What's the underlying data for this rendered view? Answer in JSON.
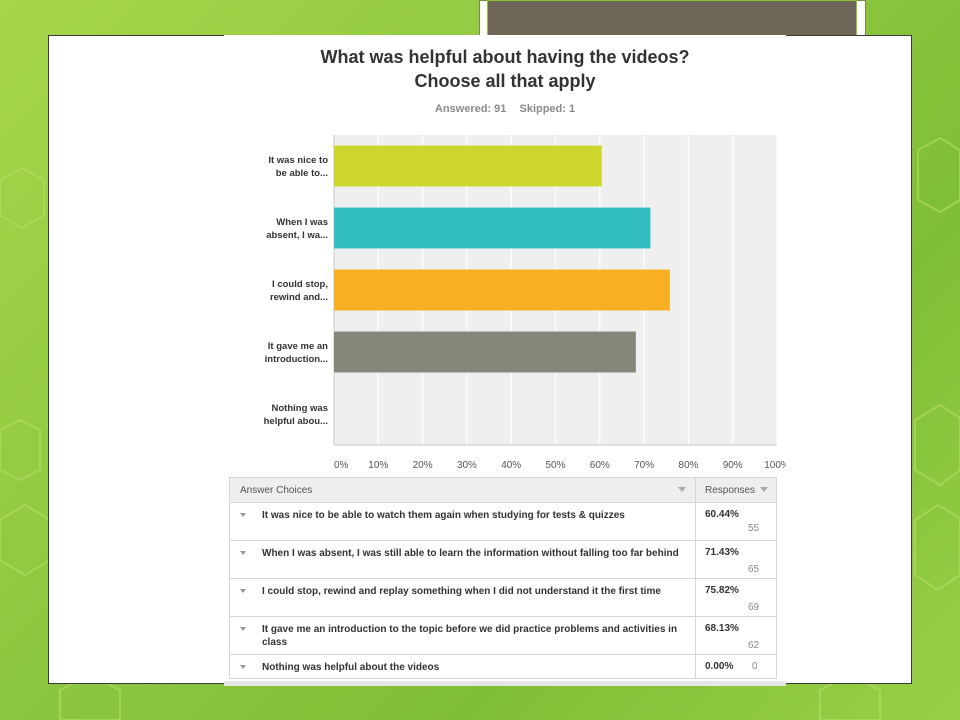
{
  "chart_data": {
    "type": "bar",
    "orientation": "horizontal",
    "title_line1": "What was helpful about having the videos?",
    "title_line2": "Choose all that apply",
    "answered": "Answered: 91",
    "skipped": "Skipped: 1",
    "categories": [
      [
        "It was nice to",
        "be able to..."
      ],
      [
        "When I was",
        "absent, I wa..."
      ],
      [
        "I could stop,",
        "rewind and..."
      ],
      [
        "It gave me an",
        "introduction..."
      ],
      [
        "Nothing was",
        "helpful abou..."
      ]
    ],
    "values": [
      60.44,
      71.43,
      75.82,
      68.13,
      0.0
    ],
    "colors": [
      "#cdd62c",
      "#33bec0",
      "#f6b021",
      "#868679",
      "#cccccc"
    ],
    "xlim": [
      0,
      100
    ],
    "xticks": [
      "0%",
      "10%",
      "20%",
      "30%",
      "40%",
      "50%",
      "60%",
      "70%",
      "80%",
      "90%",
      "100%"
    ],
    "grid": true,
    "plot_background": "#efefef"
  },
  "table": {
    "header_choice": "Answer Choices",
    "header_responses": "Responses",
    "rows": [
      {
        "choice": "It was nice to be able to watch them again when studying for tests & quizzes",
        "percent": "60.44%",
        "count": "55"
      },
      {
        "choice": "When I was absent, I was still able to learn the information without falling too far behind",
        "percent": "71.43%",
        "count": "65"
      },
      {
        "choice": "I could stop, rewind and replay something when I did not understand it the first time",
        "percent": "75.82%",
        "count": "69"
      },
      {
        "choice": "It gave me an introduction to the topic before we did practice problems and activities in class",
        "percent": "68.13%",
        "count": "62"
      },
      {
        "choice": "Nothing was helpful about the videos",
        "percent": "0.00%",
        "count": "0"
      }
    ]
  }
}
